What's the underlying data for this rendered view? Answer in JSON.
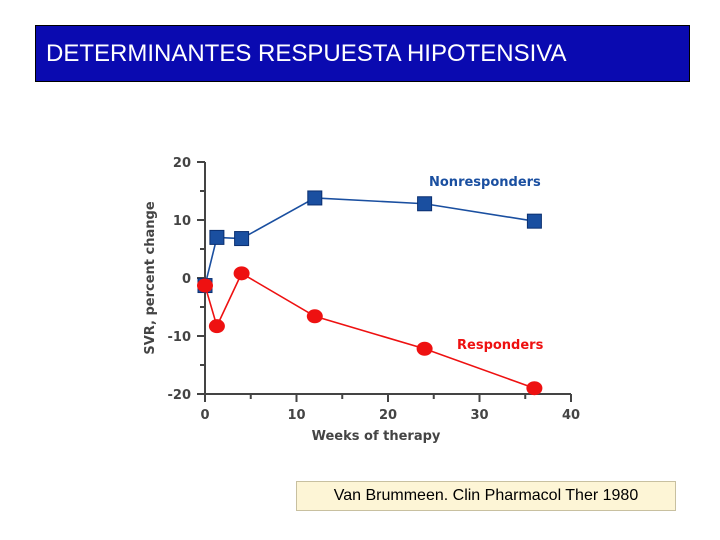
{
  "slide": {
    "title": "DETERMINANTES RESPUESTA HIPOTENSIVA",
    "citation": "Van Brummeen. Clin Pharmacol Ther 1980"
  },
  "colors": {
    "title_bg": "#0a0ab0",
    "nonresponders": "#1a4fa0",
    "responders": "#ee1111",
    "axis": "#444444"
  },
  "chart_data": {
    "type": "line",
    "xlabel": "Weeks of therapy",
    "ylabel": "SVR, percent change",
    "xlim": [
      0,
      40
    ],
    "ylim": [
      -20,
      20
    ],
    "xticks": [
      0,
      10,
      20,
      30,
      40
    ],
    "yticks": [
      20,
      10,
      0,
      -10,
      -20
    ],
    "grid": false,
    "series": [
      {
        "name": "Nonresponders",
        "marker": "square",
        "color": "#1a4fa0",
        "x": [
          0,
          1.3,
          4,
          12,
          24,
          36
        ],
        "y": [
          -1.3,
          7,
          6.8,
          13.8,
          12.8,
          9.8
        ]
      },
      {
        "name": "Responders",
        "marker": "circle",
        "color": "#ee1111",
        "x": [
          0,
          1.3,
          4,
          12,
          24,
          36
        ],
        "y": [
          -1.3,
          -8.3,
          0.8,
          -6.6,
          -12.2,
          -19
        ]
      }
    ]
  }
}
